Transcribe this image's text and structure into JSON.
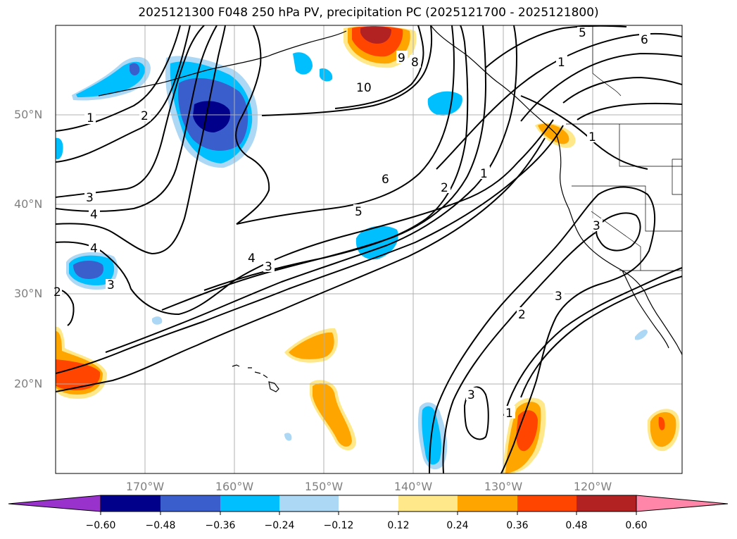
{
  "title": "2025121300 F048 250 hPa PV, precipitation PC (2025121700 - 2025121800)",
  "map": {
    "projection": "PlateCarree",
    "lon_range": [
      -180,
      -110
    ],
    "lat_range": [
      10,
      60
    ],
    "lat_ticks": [
      {
        "label": "50°N",
        "lat": 50
      },
      {
        "label": "40°N",
        "lat": 40
      },
      {
        "label": "30°N",
        "lat": 30
      },
      {
        "label": "20°N",
        "lat": 20
      }
    ],
    "lon_ticks": [
      {
        "label": "170°W",
        "lon": -170
      },
      {
        "label": "160°W",
        "lon": -160
      },
      {
        "label": "150°W",
        "lon": -150
      },
      {
        "label": "140°W",
        "lon": -140
      },
      {
        "label": "130°W",
        "lon": -130
      },
      {
        "label": "120°W",
        "lon": -120
      }
    ],
    "gridlines": true,
    "contour_labels": [
      "1",
      "2",
      "3",
      "4",
      "5",
      "6",
      "8",
      "9",
      "10",
      "1",
      "2",
      "3",
      "4",
      "5",
      "6",
      "4",
      "3",
      "2",
      "1",
      "1",
      "3",
      "3",
      "2",
      "3",
      "1"
    ]
  },
  "colorbar": {
    "orientation": "horizontal",
    "extend": "both",
    "colors": [
      "#9932cc",
      "#00008b",
      "#3a5fcd",
      "#00bfff",
      "#add8f5",
      "#ffffff",
      "#ffe88a",
      "#ffa500",
      "#ff4500",
      "#b22222",
      "#ff86a8"
    ],
    "tick_labels": [
      "−0.60",
      "−0.48",
      "−0.36",
      "−0.24",
      "−0.12",
      "0.12",
      "0.24",
      "0.36",
      "0.48",
      "0.60"
    ]
  },
  "colors": {
    "land_border": "#000000",
    "contour": "#000000",
    "grid": "#b0b0b0",
    "tick_label": "#808080"
  }
}
